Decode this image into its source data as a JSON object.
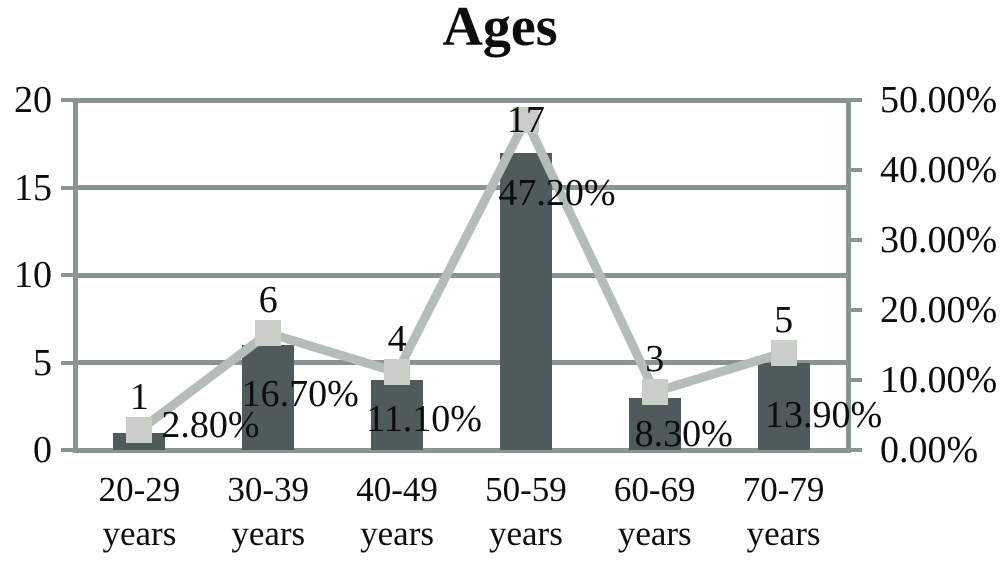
{
  "chart_data": {
    "type": "bar+line",
    "title": "Ages",
    "categories": [
      "20-29 years",
      "30-39 years",
      "40-49 years",
      "50-59 years",
      "60-69 years",
      "70-79 years"
    ],
    "series": [
      {
        "name": "count",
        "type": "bar",
        "axis": "left",
        "values": [
          1,
          6,
          4,
          17,
          3,
          5
        ],
        "labels": [
          "1",
          "6",
          "4",
          "17",
          "3",
          "5"
        ],
        "color": "#4f5b5b"
      },
      {
        "name": "percentage",
        "type": "line",
        "axis": "right",
        "values": [
          2.8,
          16.7,
          11.1,
          47.2,
          8.3,
          13.9
        ],
        "labels": [
          "2.80%",
          "16.70%",
          "11.10%",
          "47.20%",
          "8.30%",
          "13.90%"
        ],
        "color": "#b5bdba",
        "marker_color": "#c9cec9",
        "marker_shape": "square"
      }
    ],
    "left_axis": {
      "min": 0,
      "max": 20,
      "ticks": [
        "20",
        "15",
        "10",
        "5",
        "0"
      ]
    },
    "right_axis": {
      "min": 0,
      "max": 50,
      "ticks": [
        "50.00%",
        "40.00%",
        "30.00%",
        "20.00%",
        "10.00%",
        "0.00%"
      ]
    },
    "grid": true,
    "legend": "none",
    "colors": {
      "axis": "#8a9494",
      "text": "#0d0d0d",
      "background": "#ffffff"
    }
  }
}
